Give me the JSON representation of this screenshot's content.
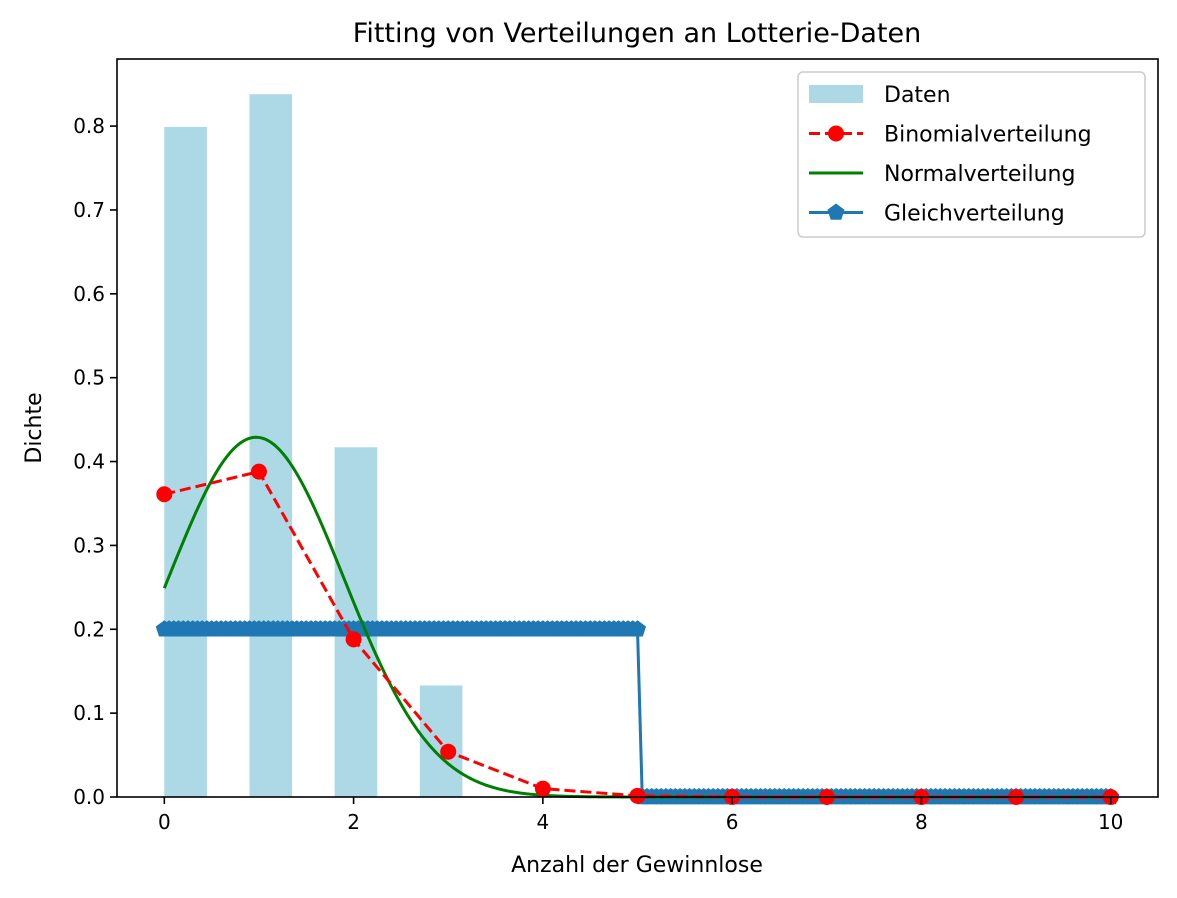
{
  "chart_data": {
    "type": "bar",
    "title": "Fitting von Verteilungen an Lotterie-Daten",
    "xlabel": "Anzahl der Gewinnlose",
    "ylabel": "Dichte",
    "xlim": [
      -0.5,
      10.5
    ],
    "ylim": [
      0,
      0.88
    ],
    "xticks": [
      0,
      2,
      4,
      6,
      8,
      10
    ],
    "xtick_labels": [
      "0",
      "2",
      "4",
      "6",
      "8",
      "10"
    ],
    "yticks": [
      0.0,
      0.1,
      0.2,
      0.3,
      0.4,
      0.5,
      0.6,
      0.7,
      0.8
    ],
    "ytick_labels": [
      "0.0",
      "0.1",
      "0.2",
      "0.3",
      "0.4",
      "0.5",
      "0.6",
      "0.7",
      "0.8"
    ],
    "grid": false,
    "legend_position": "top-right",
    "series": [
      {
        "name": "Daten",
        "kind": "histogram",
        "color": "#add8e6",
        "bins": [
          {
            "x0": 0.0,
            "x1": 0.45,
            "value": 0.799
          },
          {
            "x0": 0.9,
            "x1": 1.35,
            "value": 0.838
          },
          {
            "x0": 1.8,
            "x1": 2.25,
            "value": 0.417
          },
          {
            "x0": 2.7,
            "x1": 3.15,
            "value": 0.133
          }
        ]
      },
      {
        "name": "Binomialverteilung",
        "kind": "line-markers",
        "color": "#ff0000",
        "dash": "dashed",
        "marker": "circle",
        "x": [
          0,
          1,
          2,
          3,
          4,
          5,
          6,
          7,
          8,
          9,
          10
        ],
        "values": [
          0.361,
          0.388,
          0.188,
          0.054,
          0.01,
          0.0014,
          0.0001,
          0.0,
          0.0,
          0.0,
          0.0
        ]
      },
      {
        "name": "Normalverteilung",
        "kind": "curve",
        "color": "#008000",
        "mu": 0.97,
        "sigma": 0.93,
        "x_range": [
          0,
          10
        ]
      },
      {
        "name": "Gleichverteilung",
        "kind": "step-markers",
        "color": "#1f77b4",
        "marker": "pentagon",
        "x_range": [
          0,
          10
        ],
        "low": 0,
        "high": 5,
        "value": 0.2
      }
    ]
  }
}
